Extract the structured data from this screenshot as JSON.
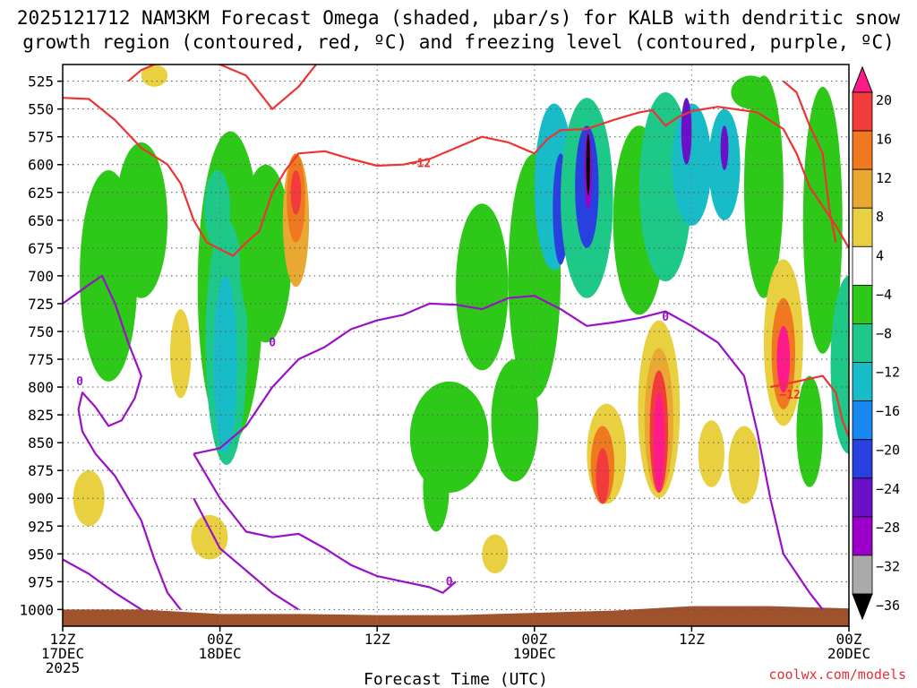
{
  "chart_data": {
    "type": "heatmap",
    "title_line1": "2025121712 NAM3KM Forecast Omega (shaded, μbar/s) for KALB with dendritic snow",
    "title_line2": "growth region (contoured, red, ºC) and freezing level (contoured, purple, ºC)",
    "xlabel": "Forecast Time (UTC)",
    "ylabel": "",
    "credit": "coolwx.com/models",
    "y_levels": [
      525,
      550,
      575,
      600,
      625,
      650,
      675,
      700,
      725,
      750,
      775,
      800,
      825,
      850,
      875,
      900,
      925,
      950,
      975,
      1000
    ],
    "y_tick_labels": [
      "525",
      "550",
      "575",
      "600",
      "625",
      "650",
      "675",
      "700",
      "725",
      "750",
      "775",
      "800",
      "825",
      "850",
      "875",
      "900",
      "925",
      "950",
      "975",
      "1000"
    ],
    "x_ticks": [
      {
        "hours": 0,
        "line1": "12Z",
        "line2": "17DEC",
        "line3": "2025"
      },
      {
        "hours": 12,
        "line1": "00Z",
        "line2": "18DEC",
        "line3": ""
      },
      {
        "hours": 24,
        "line1": "12Z",
        "line2": "",
        "line3": ""
      },
      {
        "hours": 36,
        "line1": "00Z",
        "line2": "19DEC",
        "line3": ""
      },
      {
        "hours": 48,
        "line1": "12Z",
        "line2": "",
        "line3": ""
      },
      {
        "hours": 60,
        "line1": "00Z",
        "line2": "20DEC",
        "line3": ""
      }
    ],
    "x_range_hours": [
      0,
      60
    ],
    "y_range_hpa": [
      510,
      1015
    ],
    "colorbar": {
      "labels": [
        "20",
        "16",
        "12",
        "8",
        "4",
        "−4",
        "−8",
        "−12",
        "−16",
        "−20",
        "−24",
        "−28",
        "−32",
        "−36"
      ],
      "colors": [
        "#ff1a8c",
        "#f23c3c",
        "#f07820",
        "#e8a832",
        "#e8d040",
        "#ffffff",
        "#2ec818",
        "#1ec888",
        "#18bcc8",
        "#1888ee",
        "#2840e0",
        "#6a10c8",
        "#9c00c8",
        "#aaaaaa",
        "#000000"
      ]
    },
    "omega_blobs": [
      {
        "t": 3.5,
        "p": 700,
        "dt": 2.2,
        "dp": 190,
        "level": -8
      },
      {
        "t": 6.0,
        "p": 650,
        "dt": 2.0,
        "dp": 140,
        "level": -8
      },
      {
        "t": 12.8,
        "p": 710,
        "dt": 2.5,
        "dp": 280,
        "level": -8
      },
      {
        "t": 12.5,
        "p": 760,
        "dt": 1.6,
        "dp": 220,
        "level": -12
      },
      {
        "t": 12.4,
        "p": 780,
        "dt": 0.9,
        "dp": 160,
        "level": -16
      },
      {
        "t": 11.8,
        "p": 640,
        "dt": 1.0,
        "dp": 70,
        "level": -12
      },
      {
        "t": 15.5,
        "p": 680,
        "dt": 2.0,
        "dp": 160,
        "level": -8
      },
      {
        "t": 17.8,
        "p": 650,
        "dt": 1.0,
        "dp": 120,
        "level": 8
      },
      {
        "t": 17.8,
        "p": 630,
        "dt": 0.7,
        "dp": 80,
        "level": 12
      },
      {
        "t": 17.8,
        "p": 625,
        "dt": 0.4,
        "dp": 40,
        "level": 16
      },
      {
        "t": 9.0,
        "p": 770,
        "dt": 0.8,
        "dp": 80,
        "level": 4
      },
      {
        "t": 2.0,
        "p": 900,
        "dt": 1.2,
        "dp": 50,
        "level": 4
      },
      {
        "t": 11.2,
        "p": 935,
        "dt": 1.4,
        "dp": 40,
        "level": 4
      },
      {
        "t": 29.5,
        "p": 845,
        "dt": 3.0,
        "dp": 100,
        "level": -8
      },
      {
        "t": 32.0,
        "p": 710,
        "dt": 2.0,
        "dp": 150,
        "level": -8
      },
      {
        "t": 34.5,
        "p": 830,
        "dt": 1.8,
        "dp": 110,
        "level": -8
      },
      {
        "t": 33.0,
        "p": 950,
        "dt": 1.0,
        "dp": 35,
        "level": 4
      },
      {
        "t": 36.0,
        "p": 700,
        "dt": 2.0,
        "dp": 220,
        "level": -8
      },
      {
        "t": 37.5,
        "p": 620,
        "dt": 1.5,
        "dp": 150,
        "level": -16
      },
      {
        "t": 38.0,
        "p": 640,
        "dt": 0.6,
        "dp": 100,
        "level": -24
      },
      {
        "t": 40.0,
        "p": 630,
        "dt": 2.0,
        "dp": 180,
        "level": -12
      },
      {
        "t": 40.0,
        "p": 620,
        "dt": 0.9,
        "dp": 110,
        "level": -24
      },
      {
        "t": 40.1,
        "p": 605,
        "dt": 0.3,
        "dp": 70,
        "level": -32
      },
      {
        "t": 40.1,
        "p": 600,
        "dt": 0.15,
        "dp": 55,
        "level": -36
      },
      {
        "t": 44.0,
        "p": 650,
        "dt": 2.0,
        "dp": 170,
        "level": -8
      },
      {
        "t": 46.0,
        "p": 620,
        "dt": 2.0,
        "dp": 170,
        "level": -12
      },
      {
        "t": 48.0,
        "p": 600,
        "dt": 1.5,
        "dp": 110,
        "level": -16
      },
      {
        "t": 47.6,
        "p": 570,
        "dt": 0.4,
        "dp": 60,
        "level": -28
      },
      {
        "t": 50.5,
        "p": 600,
        "dt": 1.2,
        "dp": 100,
        "level": -16
      },
      {
        "t": 50.5,
        "p": 585,
        "dt": 0.3,
        "dp": 40,
        "level": -28
      },
      {
        "t": 53.5,
        "p": 620,
        "dt": 1.5,
        "dp": 200,
        "level": -8
      },
      {
        "t": 58.0,
        "p": 650,
        "dt": 1.5,
        "dp": 240,
        "level": -8
      },
      {
        "t": 57.0,
        "p": 840,
        "dt": 1.0,
        "dp": 100,
        "level": -8
      },
      {
        "t": 41.5,
        "p": 860,
        "dt": 1.5,
        "dp": 90,
        "level": 4
      },
      {
        "t": 41.2,
        "p": 870,
        "dt": 0.9,
        "dp": 70,
        "level": 12
      },
      {
        "t": 41.2,
        "p": 880,
        "dt": 0.5,
        "dp": 50,
        "level": 16
      },
      {
        "t": 45.5,
        "p": 820,
        "dt": 1.6,
        "dp": 160,
        "level": 4
      },
      {
        "t": 45.5,
        "p": 830,
        "dt": 1.1,
        "dp": 130,
        "level": 8
      },
      {
        "t": 45.5,
        "p": 840,
        "dt": 0.7,
        "dp": 110,
        "level": 16
      },
      {
        "t": 45.5,
        "p": 850,
        "dt": 0.4,
        "dp": 90,
        "level": 20
      },
      {
        "t": 49.5,
        "p": 860,
        "dt": 1.0,
        "dp": 60,
        "level": 4
      },
      {
        "t": 55.0,
        "p": 760,
        "dt": 1.5,
        "dp": 150,
        "level": 4
      },
      {
        "t": 55.0,
        "p": 770,
        "dt": 0.9,
        "dp": 100,
        "level": 12
      },
      {
        "t": 55.0,
        "p": 775,
        "dt": 0.5,
        "dp": 60,
        "level": 20
      },
      {
        "t": 52.0,
        "p": 870,
        "dt": 1.2,
        "dp": 70,
        "level": 4
      },
      {
        "t": 60.0,
        "p": 780,
        "dt": 1.4,
        "dp": 160,
        "level": -12
      },
      {
        "t": 28.5,
        "p": 890,
        "dt": 1.0,
        "dp": 80,
        "level": -8
      },
      {
        "t": 52.5,
        "p": 535,
        "dt": 1.5,
        "dp": 30,
        "level": -8
      },
      {
        "t": 7.0,
        "p": 520,
        "dt": 1.0,
        "dp": 20,
        "level": 4
      }
    ],
    "dendritic_minus12_lines": [
      {
        "label": "−12",
        "label_hours": 27.3,
        "label_hpa": 599,
        "points": [
          [
            0,
            540
          ],
          [
            2,
            541
          ],
          [
            4,
            560
          ],
          [
            6,
            585
          ],
          [
            8,
            600
          ],
          [
            9,
            617
          ],
          [
            10,
            650
          ],
          [
            11,
            670
          ],
          [
            13,
            682
          ],
          [
            14,
            670
          ],
          [
            15,
            660
          ],
          [
            16,
            625
          ],
          [
            17,
            605
          ],
          [
            18,
            590
          ],
          [
            20,
            588
          ],
          [
            22,
            595
          ],
          [
            24,
            601
          ],
          [
            26,
            600
          ],
          [
            28,
            595
          ],
          [
            30,
            585
          ],
          [
            32,
            575
          ],
          [
            34,
            580
          ],
          [
            36,
            590
          ],
          [
            37,
            577
          ],
          [
            38,
            569
          ],
          [
            40,
            568
          ],
          [
            42,
            560
          ],
          [
            44,
            553
          ],
          [
            45,
            551
          ],
          [
            46,
            565
          ],
          [
            47,
            557
          ],
          [
            48,
            552
          ],
          [
            50,
            548
          ],
          [
            53,
            553
          ],
          [
            55,
            568
          ],
          [
            56,
            590
          ],
          [
            57,
            620
          ],
          [
            59,
            655
          ],
          [
            60,
            675
          ]
        ]
      },
      {
        "label": "",
        "label_hours": 0,
        "label_hpa": 0,
        "points": [
          [
            5,
            525
          ],
          [
            6,
            515
          ],
          [
            8,
            505
          ],
          [
            10,
            505
          ],
          [
            12,
            510
          ],
          [
            14,
            520
          ],
          [
            16,
            550
          ],
          [
            18,
            530
          ],
          [
            20,
            500
          ]
        ]
      },
      {
        "label": "−12",
        "label_hours": 55.5,
        "label_hpa": 807,
        "points": [
          [
            54,
            800
          ],
          [
            56,
            795
          ],
          [
            58,
            790
          ],
          [
            59,
            805
          ],
          [
            59.5,
            830
          ],
          [
            60,
            845
          ]
        ]
      },
      {
        "label": "",
        "label_hours": 0,
        "label_hpa": 0,
        "points": [
          [
            55,
            525
          ],
          [
            56,
            535
          ],
          [
            57,
            565
          ],
          [
            58,
            590
          ],
          [
            58.5,
            640
          ],
          [
            59,
            670
          ]
        ]
      }
    ],
    "freezing_level_0_lines": [
      {
        "label": "0",
        "label_hours": 16,
        "label_hpa": 760,
        "points": [
          [
            0,
            725
          ],
          [
            2,
            708
          ],
          [
            3,
            700
          ],
          [
            4,
            725
          ],
          [
            5,
            760
          ],
          [
            6,
            790
          ],
          [
            5.5,
            810
          ],
          [
            4.5,
            830
          ],
          [
            3.5,
            835
          ],
          [
            2.5,
            818
          ],
          [
            1.5,
            805
          ],
          [
            1.2,
            820
          ],
          [
            1.5,
            840
          ],
          [
            2.5,
            860
          ],
          [
            4,
            880
          ],
          [
            6,
            920
          ],
          [
            7,
            955
          ],
          [
            8,
            985
          ],
          [
            9,
            1000
          ]
        ]
      },
      {
        "label": "0",
        "label_hours": 46,
        "label_hpa": 737,
        "points": [
          [
            10,
            860
          ],
          [
            12,
            855
          ],
          [
            14,
            835
          ],
          [
            16,
            800
          ],
          [
            18,
            775
          ],
          [
            20,
            764
          ],
          [
            22,
            748
          ],
          [
            24,
            740
          ],
          [
            26,
            735
          ],
          [
            28,
            725
          ],
          [
            30,
            726
          ],
          [
            32,
            730
          ],
          [
            34,
            720
          ],
          [
            36,
            718
          ],
          [
            38,
            730
          ],
          [
            40,
            745
          ],
          [
            42,
            742
          ],
          [
            44,
            738
          ],
          [
            46,
            732
          ],
          [
            48,
            745
          ],
          [
            50,
            760
          ],
          [
            52,
            790
          ],
          [
            53,
            840
          ],
          [
            54,
            900
          ],
          [
            55,
            950
          ],
          [
            57,
            985
          ],
          [
            58,
            1000
          ]
        ]
      },
      {
        "label": "0",
        "label_hours": 29.5,
        "label_hpa": 975,
        "points": [
          [
            10,
            860
          ],
          [
            11,
            880
          ],
          [
            12,
            900
          ],
          [
            14,
            930
          ],
          [
            16,
            935
          ],
          [
            18,
            932
          ],
          [
            20,
            945
          ],
          [
            22,
            960
          ],
          [
            24,
            970
          ],
          [
            26,
            975
          ],
          [
            28,
            980
          ],
          [
            29,
            985
          ],
          [
            30,
            975
          ]
        ]
      },
      {
        "label": "0",
        "label_hours": 1.3,
        "label_hpa": 795,
        "points": [
          [
            0,
            955
          ],
          [
            2,
            968
          ],
          [
            4,
            985
          ],
          [
            6,
            1000
          ]
        ]
      },
      {
        "label": "",
        "label_hours": 0,
        "label_hpa": 0,
        "points": [
          [
            10,
            900
          ],
          [
            12,
            945
          ],
          [
            14,
            965
          ],
          [
            16,
            985
          ],
          [
            18,
            1000
          ]
        ]
      }
    ],
    "terrain_surface_hpa": [
      [
        0,
        1000
      ],
      [
        6,
        1000
      ],
      [
        12,
        1004
      ],
      [
        18,
        1004
      ],
      [
        24,
        1005
      ],
      [
        30,
        1005
      ],
      [
        36,
        1003
      ],
      [
        42,
        1001
      ],
      [
        48,
        997
      ],
      [
        54,
        997
      ],
      [
        60,
        999
      ]
    ]
  }
}
